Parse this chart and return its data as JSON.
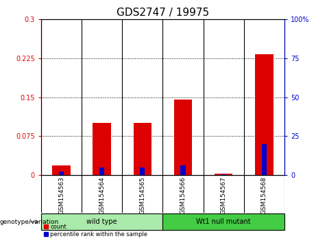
{
  "title": "GDS2747 / 19975",
  "samples": [
    "GSM154563",
    "GSM154564",
    "GSM154565",
    "GSM154566",
    "GSM154567",
    "GSM154568"
  ],
  "count_values": [
    0.018,
    0.1,
    0.1,
    0.145,
    0.002,
    0.233
  ],
  "percentile_values": [
    2,
    5,
    5,
    6,
    0.5,
    20
  ],
  "left_ylim": [
    0,
    0.3
  ],
  "right_ylim": [
    0,
    100
  ],
  "left_yticks": [
    0,
    0.075,
    0.15,
    0.225,
    0.3
  ],
  "left_yticklabels": [
    "0",
    "0.075",
    "0.15",
    "0.225",
    "0.3"
  ],
  "right_yticks": [
    0,
    25,
    50,
    75,
    100
  ],
  "right_yticklabels": [
    "0",
    "25",
    "50",
    "75",
    "100%"
  ],
  "hlines": [
    0.075,
    0.15,
    0.225
  ],
  "bar_color": "#dd0000",
  "percentile_color": "#0000cc",
  "bar_width": 0.45,
  "percentile_bar_width": 0.12,
  "groups": [
    {
      "label": "wild type",
      "indices": [
        0,
        1,
        2
      ],
      "color": "#aaeaaa"
    },
    {
      "label": "Wt1 null mutant",
      "indices": [
        3,
        4,
        5
      ],
      "color": "#44cc44"
    }
  ],
  "genotype_label": "genotype/variation",
  "legend_count_label": "count",
  "legend_percentile_label": "percentile rank within the sample",
  "plot_bg_color": "#ffffff",
  "sample_bg_color": "#cccccc",
  "title_fontsize": 11,
  "tick_fontsize": 7,
  "label_fontsize": 8
}
